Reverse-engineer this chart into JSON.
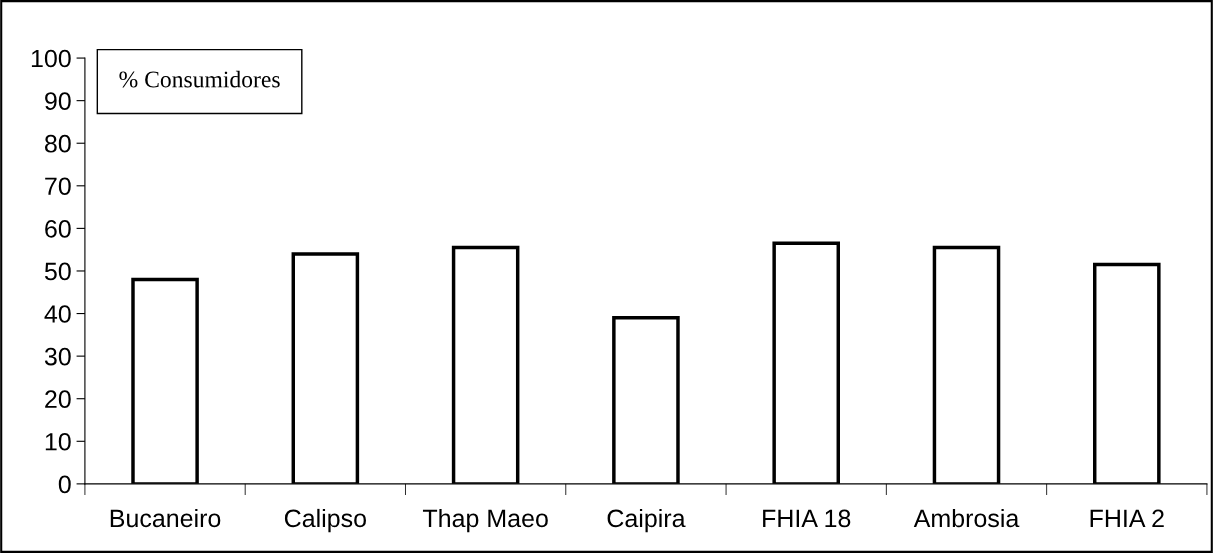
{
  "chart_data": {
    "type": "bar",
    "ylabel": "% Consumidores",
    "categories": [
      "Bucaneiro",
      "Calipso",
      "Thap Maeo",
      "Caipira",
      "FHIA 18",
      "Ambrosia",
      "FHIA 2"
    ],
    "values": [
      48,
      54,
      55.5,
      39,
      56.5,
      55.5,
      51.5
    ],
    "color": "#ffffff",
    "ylim": [
      0,
      100
    ],
    "yticks": [
      0,
      10,
      20,
      30,
      40,
      50,
      60,
      70,
      80,
      90,
      100
    ],
    "grid": false
  }
}
